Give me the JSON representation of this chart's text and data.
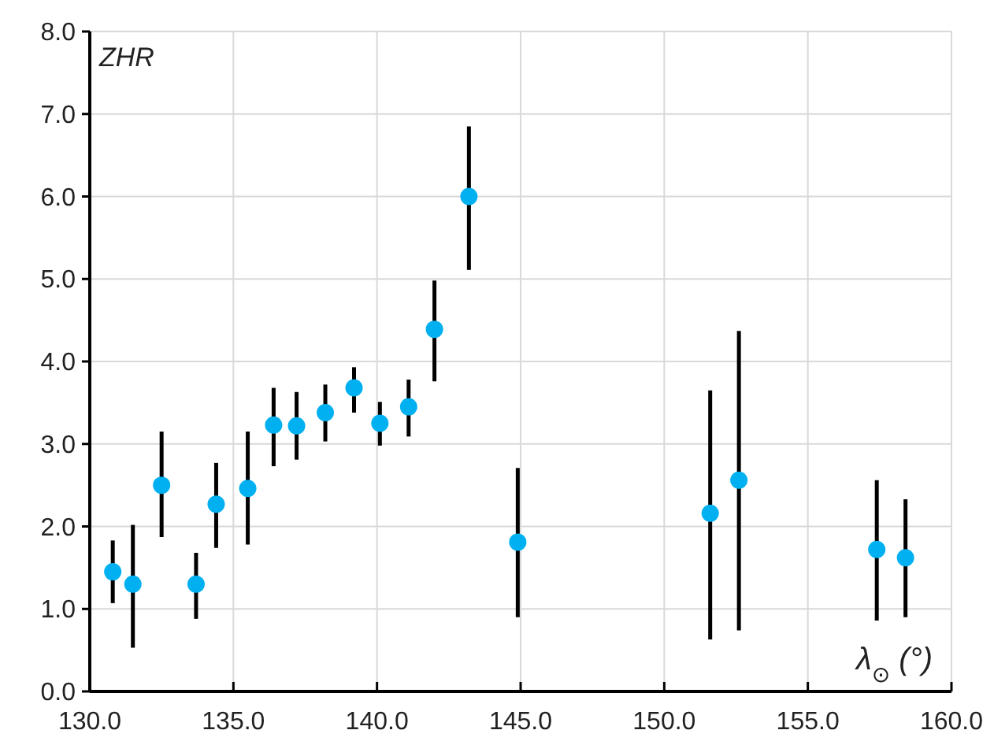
{
  "chart_data": {
    "type": "scatter",
    "xlabel": "λ$_{⊙}$ (°)",
    "ylabel": "ZHR",
    "marker": "circle",
    "grid": true,
    "xlim": [
      130,
      160
    ],
    "ylim": [
      0,
      8
    ],
    "xticks": [
      {
        "value": 130,
        "label": "130.0"
      },
      {
        "value": 135,
        "label": "135.0"
      },
      {
        "value": 140,
        "label": "140.0"
      },
      {
        "value": 145,
        "label": "145.0"
      },
      {
        "value": 150,
        "label": "150.0"
      },
      {
        "value": 155,
        "label": "155.0"
      },
      {
        "value": 160,
        "label": "160.0"
      }
    ],
    "yticks": [
      {
        "value": 0,
        "label": "0.0"
      },
      {
        "value": 1,
        "label": "1.0"
      },
      {
        "value": 2,
        "label": "2.0"
      },
      {
        "value": 3,
        "label": "3.0"
      },
      {
        "value": 4,
        "label": "4.0"
      },
      {
        "value": 5,
        "label": "5.0"
      },
      {
        "value": 6,
        "label": "6.0"
      },
      {
        "value": 7,
        "label": "7.0"
      },
      {
        "value": 8,
        "label": "8.0"
      }
    ],
    "series": [
      {
        "color": "#00b0f0",
        "x": [
          130.8,
          131.5,
          132.5,
          133.7,
          134.4,
          135.5,
          136.4,
          137.2,
          138.2,
          139.2,
          140.1,
          141.1,
          142.0,
          143.2,
          144.9,
          151.6,
          152.6,
          157.4,
          158.4
        ],
        "values": [
          1.45,
          1.3,
          2.5,
          1.3,
          2.27,
          2.46,
          3.23,
          3.22,
          3.38,
          3.68,
          3.25,
          3.45,
          4.39,
          6.0,
          1.81,
          2.16,
          2.56,
          1.72,
          1.62
        ],
        "errors": [
          [
            1.07,
            1.83
          ],
          [
            0.53,
            2.02
          ],
          [
            1.87,
            3.15
          ],
          [
            0.88,
            1.68
          ],
          [
            1.74,
            2.77
          ],
          [
            1.78,
            3.15
          ],
          [
            2.73,
            3.68
          ],
          [
            2.81,
            3.63
          ],
          [
            3.03,
            3.72
          ],
          [
            3.38,
            3.93
          ],
          [
            2.98,
            3.51
          ],
          [
            3.09,
            3.78
          ],
          [
            3.76,
            4.98
          ],
          [
            5.11,
            6.85
          ],
          [
            0.9,
            2.71
          ],
          [
            0.63,
            3.65
          ],
          [
            0.74,
            4.37
          ],
          [
            0.86,
            2.56
          ],
          [
            0.9,
            2.33
          ]
        ]
      }
    ]
  }
}
